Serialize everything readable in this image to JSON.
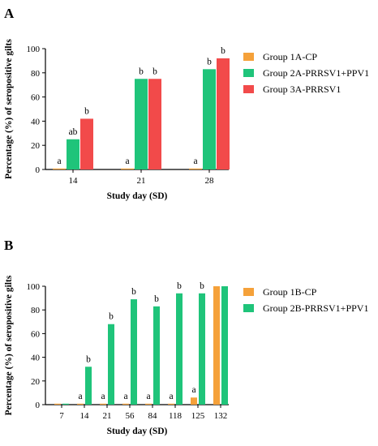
{
  "chart_data": [
    {
      "panel": "A",
      "type": "bar",
      "categories": [
        "14",
        "21",
        "28"
      ],
      "xlabel": "Study day (SD)",
      "ylabel": "Percentage (%) of seropositive gilts",
      "ylim": [
        0,
        100
      ],
      "yticks": [
        "0",
        "20",
        "40",
        "60",
        "80",
        "100"
      ],
      "grid": false,
      "legend": "right",
      "series": [
        {
          "name": "Group 1A-CP",
          "color": "#f5a13a",
          "values": [
            0,
            0,
            0
          ],
          "labels": [
            "a",
            "a",
            "a"
          ]
        },
        {
          "name": "Group 2A-PRRSV1+PPV1",
          "color": "#1fc47a",
          "values": [
            25,
            75,
            83
          ],
          "labels": [
            "ab",
            "b",
            "b"
          ]
        },
        {
          "name": "Group 3A-PRRSV1",
          "color": "#f24a4a",
          "values": [
            42,
            75,
            92
          ],
          "labels": [
            "b",
            "b",
            "b"
          ]
        }
      ]
    },
    {
      "panel": "B",
      "type": "bar",
      "categories": [
        "7",
        "14",
        "21",
        "56",
        "84",
        "118",
        "125",
        "132"
      ],
      "xlabel": "Study day (SD)",
      "ylabel": "Percentage (%) of seropositive gilts",
      "ylim": [
        0,
        100
      ],
      "yticks": [
        "0",
        "20",
        "40",
        "60",
        "80",
        "100"
      ],
      "grid": false,
      "legend": "right",
      "series": [
        {
          "name": "Group 1B-CP",
          "color": "#f5a13a",
          "values": [
            0,
            0,
            0,
            0,
            0,
            0,
            6,
            100
          ],
          "labels": [
            "",
            "a",
            "a",
            "a",
            "a",
            "a",
            "a",
            ""
          ]
        },
        {
          "name": "Group 2B-PRRSV1+PPV1",
          "color": "#1fc47a",
          "values": [
            0,
            32,
            68,
            89,
            83,
            94,
            94,
            100
          ],
          "labels": [
            "",
            "b",
            "b",
            "b",
            "b",
            "b",
            "b",
            ""
          ]
        }
      ]
    }
  ]
}
